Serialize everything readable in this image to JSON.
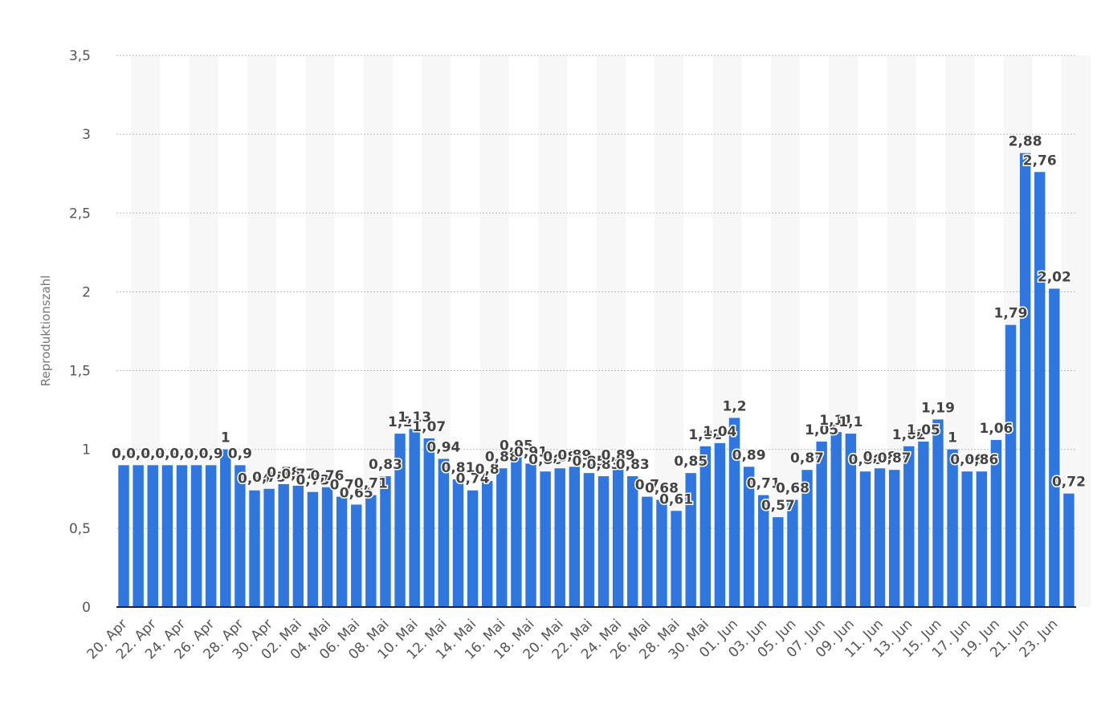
{
  "chart_data": {
    "type": "bar",
    "y_label": "Reproduktionszahl",
    "color": "#2f76de",
    "grid": true,
    "categories": [
      "20. Apr",
      null,
      "22. Apr",
      null,
      "24. Apr",
      null,
      "26. Apr",
      null,
      "28. Apr",
      null,
      "30. Apr",
      null,
      "02. Mai",
      null,
      "04. Mai",
      null,
      "06. Mai",
      null,
      "08. Mai",
      null,
      "10. Mai",
      null,
      "12. Mai",
      null,
      "14. Mai",
      null,
      "16. Mai",
      null,
      "18. Mai",
      null,
      "20. Mai",
      null,
      "22. Mai",
      null,
      "24. Mai",
      null,
      "26. Mai",
      null,
      "28. Mai",
      null,
      "30. Mai",
      null,
      "01. Jun",
      null,
      "03. Jun",
      null,
      "05. Jun",
      null,
      "07. Jun",
      null,
      "09. Jun",
      null,
      "11. Jun",
      null,
      "13. Jun",
      null,
      "15. Jun",
      null,
      "17. Jun",
      null,
      "19. Jun",
      null,
      "21. Jun",
      null,
      "23. Jun",
      null
    ],
    "values": [
      0.9,
      0.9,
      0.9,
      0.9,
      0.9,
      0.9,
      0.9,
      1,
      0.9,
      0.74,
      0.75,
      0.78,
      0.77,
      0.73,
      0.76,
      0.7,
      0.65,
      0.71,
      0.83,
      1.1,
      1.13,
      1.07,
      0.94,
      0.81,
      0.74,
      0.8,
      0.88,
      0.95,
      0.91,
      0.86,
      0.88,
      0.89,
      0.85,
      0.83,
      0.89,
      0.83,
      0.7,
      0.68,
      0.61,
      0.85,
      1.02,
      1.04,
      1.2,
      0.89,
      0.71,
      0.57,
      0.68,
      0.87,
      1.05,
      1.11,
      1.1,
      0.86,
      0.88,
      0.87,
      1.02,
      1.05,
      1.19,
      1,
      0.86,
      0.86,
      1.06,
      1.79,
      2.88,
      2.76,
      2.02,
      0.72
    ],
    "value_labels": [
      "0,9",
      "0,9",
      "0,9",
      "0,9",
      "0,9",
      "0,9",
      "0,9",
      "1",
      "0,9",
      "0,74",
      "0,75",
      "0,78",
      "0,77",
      "0,73",
      "0,76",
      "0,7",
      "0,65",
      "0,71",
      "0,83",
      "1,1",
      "1,13",
      "1,07",
      "0,94",
      "0,81",
      "0,74",
      "0,8",
      "0,88",
      "0,95",
      "0,91",
      "0,86",
      "0,88",
      "0,89",
      "0,85",
      "0,83",
      "0,89",
      "0,83",
      "0,7",
      "0,68",
      "0,61",
      "0,85",
      "1,02",
      "1,04",
      "1,2",
      "0,89",
      "0,71",
      "0,57",
      "0,68",
      "0,87",
      "1,05",
      "1,11",
      "1,1",
      "0,86",
      "0,88",
      "0,87",
      "1,02",
      "1,05",
      "1,19",
      "1",
      "0,86",
      "0,86",
      "1,06",
      "1,79",
      "2,88",
      "2,76",
      "2,02",
      "0,72"
    ],
    "ylim": [
      0,
      3.5
    ],
    "yticks": [
      0,
      {
        "value": 0.5,
        "label": "0,5"
      },
      1,
      {
        "value": 1.5,
        "label": "1,5"
      },
      2,
      {
        "value": 2.5,
        "label": "2,5"
      },
      3,
      {
        "value": 3.5,
        "label": "3,5"
      }
    ]
  }
}
